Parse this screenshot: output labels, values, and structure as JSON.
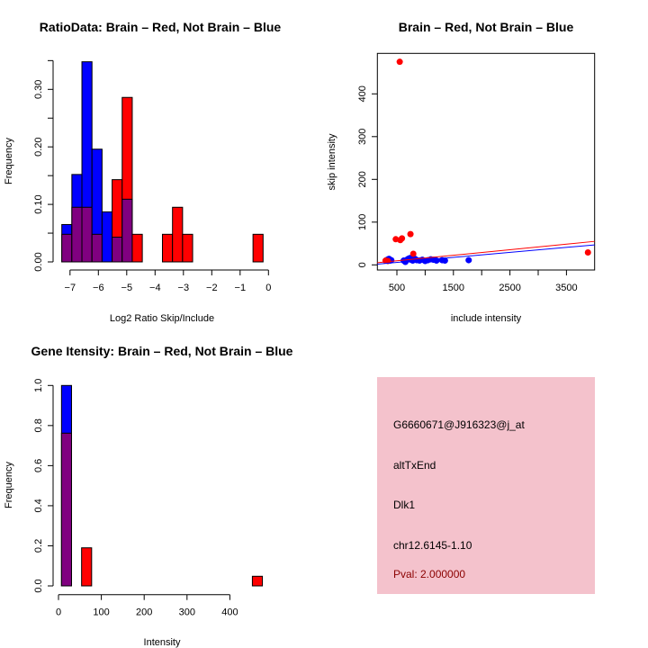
{
  "chart_data": [
    {
      "type": "bar",
      "subtype": "overlaid-histogram",
      "title": "RatioData: Brain – Red, Not Brain – Blue",
      "xlabel": "Log2 Ratio Skip/Include",
      "ylabel": "Frequency",
      "xlim": [
        -7.29,
        -0.19
      ],
      "ylim": [
        0,
        0.35
      ],
      "xticks": [
        -7,
        -6,
        -5,
        -4,
        -3,
        -2,
        -1,
        0
      ],
      "yticks": [
        0,
        0.05,
        0.1,
        0.15,
        0.2,
        0.25,
        0.3,
        0.35
      ],
      "ytick_labels": [
        "0.00",
        "",
        "0.10",
        "",
        "0.20",
        "",
        "0.30",
        ""
      ],
      "bin_start": -7.29,
      "bin_width": 0.355,
      "series": [
        {
          "name": "Not Brain",
          "color": "#0000ff",
          "values": [
            0.065,
            0.152,
            0.348,
            0.196,
            0.087,
            0.043,
            0.109,
            0,
            0,
            0,
            0,
            0,
            0,
            0,
            0,
            0,
            0,
            0,
            0,
            0
          ]
        },
        {
          "name": "Brain",
          "color": "#ff0000",
          "values": [
            0.048,
            0.095,
            0.095,
            0.048,
            0,
            0.143,
            0.286,
            0.048,
            0,
            0,
            0.048,
            0.095,
            0.048,
            0,
            0,
            0,
            0,
            0,
            0,
            0.048
          ]
        }
      ],
      "overlap_color": "#800080"
    },
    {
      "type": "scatter",
      "title": "Brain – Red, Not Brain – Blue",
      "xlabel": "include intensity",
      "ylabel": "skip intensity",
      "xlim": [
        154,
        3998
      ],
      "ylim": [
        -12,
        495
      ],
      "xticks": [
        500,
        1000,
        1500,
        2000,
        2500,
        3000,
        3500
      ],
      "xtick_labels": [
        "500",
        "",
        "1500",
        "",
        "2500",
        "",
        "3500"
      ],
      "yticks": [
        0,
        100,
        200,
        300,
        400
      ],
      "series": [
        {
          "name": "Not Brain",
          "color": "#0000ff",
          "x": [
            330,
            360,
            380,
            400,
            620,
            650,
            680,
            700,
            730,
            750,
            780,
            820,
            850,
            900,
            950,
            1000,
            1050,
            1100,
            1150,
            1200,
            1300,
            1350,
            1770
          ],
          "y": [
            12,
            14,
            10,
            11,
            10,
            7,
            12,
            14,
            16,
            12,
            10,
            14,
            11,
            10,
            12,
            9,
            11,
            13,
            12,
            10,
            11,
            10,
            11
          ],
          "fit": {
            "intercept": 0,
            "slope": 0.0117
          }
        },
        {
          "name": "Brain",
          "color": "#ff0000",
          "x": [
            300,
            340,
            480,
            560,
            590,
            740,
            550,
            790,
            3880
          ],
          "y": [
            10,
            9,
            60,
            58,
            62,
            72,
            475,
            26,
            29
          ],
          "fit": {
            "intercept": 3,
            "slope": 0.013
          }
        }
      ]
    },
    {
      "type": "bar",
      "subtype": "overlaid-histogram",
      "title": "Gene Itensity: Brain – Red, Not Brain – Blue",
      "xlabel": "Intensity",
      "ylabel": "Frequency",
      "xlim": [
        7,
        476
      ],
      "ylim": [
        0,
        1.0
      ],
      "xticks": [
        0,
        100,
        200,
        300,
        400
      ],
      "yticks": [
        0,
        0.2,
        0.4,
        0.6,
        0.8,
        1.0
      ],
      "ytick_labels": [
        "0.0",
        "0.2",
        "0.4",
        "0.6",
        "0.8",
        "1.0"
      ],
      "bin_start": 7,
      "bin_width": 23.45,
      "series": [
        {
          "name": "Not Brain",
          "color": "#0000ff",
          "values": [
            1.0,
            0,
            0,
            0,
            0,
            0,
            0,
            0,
            0,
            0,
            0,
            0,
            0,
            0,
            0,
            0,
            0,
            0,
            0,
            0
          ]
        },
        {
          "name": "Brain",
          "color": "#ff0000",
          "values": [
            0.762,
            0,
            0.19,
            0,
            0,
            0,
            0,
            0,
            0,
            0,
            0,
            0,
            0,
            0,
            0,
            0,
            0,
            0,
            0,
            0.048
          ]
        }
      ],
      "overlap_color": "#800080"
    }
  ],
  "info_panel": {
    "background": "#f4c2cc",
    "probe_id": "G6660671@J916323@j_at",
    "event_type": "altTxEnd",
    "gene": "Dlk1",
    "location": "chr12.6145-1.10",
    "pval": "Pval: 2.000000",
    "pval_color": "#8b0000"
  }
}
